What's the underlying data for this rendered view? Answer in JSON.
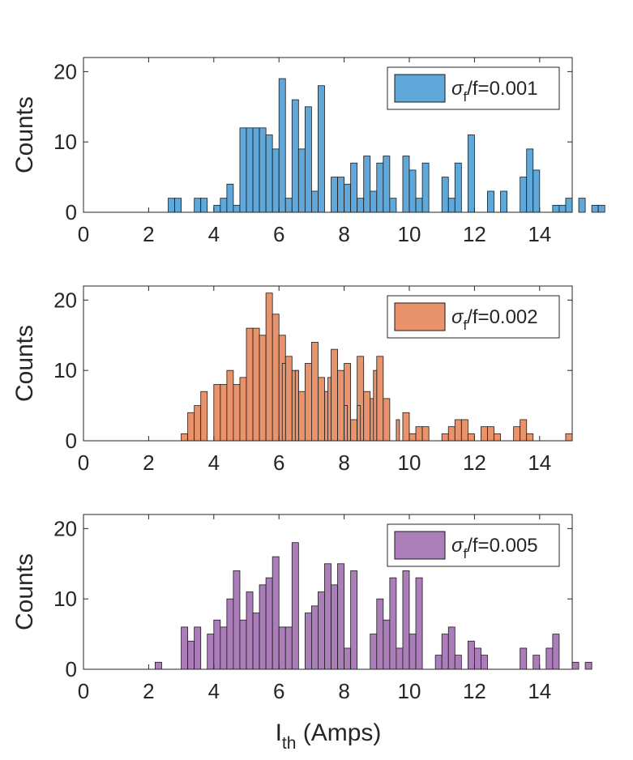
{
  "chart_data": [
    {
      "type": "bar",
      "panel": "top",
      "ylabel": "Counts",
      "xlabel": "",
      "xlim": [
        0,
        15
      ],
      "ylim": [
        0,
        22
      ],
      "xticks": [
        "0",
        "2",
        "4",
        "6",
        "8",
        "10",
        "12",
        "14"
      ],
      "yticks": [
        "0",
        "10",
        "20"
      ],
      "legend_position": "top-right",
      "legend": {
        "symbol": "σ",
        "sub": "f",
        "rest": "/f=0.001"
      },
      "color": "#5fa8d9",
      "bin_start": 1.0,
      "bin_width": 0.2,
      "values": [
        0,
        0,
        0,
        0,
        0,
        0,
        0,
        0,
        2,
        2,
        0,
        0,
        2,
        2,
        0,
        1,
        2,
        4,
        1,
        12,
        12,
        12,
        12,
        11,
        9,
        19,
        2,
        16,
        9,
        15,
        3,
        18,
        0,
        5,
        5,
        4,
        7,
        2,
        8,
        3,
        7,
        8,
        2,
        0,
        8,
        6,
        2,
        7,
        0,
        0,
        5,
        2,
        7,
        0,
        11,
        0,
        0,
        3,
        0,
        3,
        0,
        0,
        5,
        9,
        6,
        0,
        0,
        1,
        1,
        2,
        0,
        2,
        0,
        1,
        1
      ],
      "extra_values": []
    },
    {
      "type": "bar",
      "panel": "middle",
      "ylabel": "Counts",
      "xlabel": "",
      "xlim": [
        0,
        15
      ],
      "ylim": [
        0,
        22
      ],
      "xticks": [
        "0",
        "2",
        "4",
        "6",
        "8",
        "10",
        "12",
        "14"
      ],
      "yticks": [
        "0",
        "10",
        "20"
      ],
      "legend_position": "top-right",
      "legend": {
        "symbol": "σ",
        "sub": "f",
        "rest": "/f=0.002"
      },
      "color": "#e9936c",
      "bin_start": 1.0,
      "bin_width": 0.2,
      "values": [
        0,
        0,
        0,
        0,
        0,
        0,
        0,
        0,
        0,
        0,
        1,
        4,
        5,
        7,
        0,
        8,
        8,
        10,
        8,
        9,
        16,
        16,
        15,
        21,
        18,
        15,
        12,
        10,
        7,
        11,
        14,
        9,
        7,
        13,
        10,
        11,
        3,
        12,
        7,
        6,
        12,
        6,
        0,
        0,
        4,
        1,
        2,
        2,
        0,
        0,
        1,
        2,
        3,
        3,
        1,
        0,
        2,
        2,
        1,
        0,
        0,
        2,
        3,
        1,
        0,
        0,
        0,
        0,
        0,
        1,
        0,
        0,
        0,
        0,
        0
      ],
      "extra_values": [
        {
          "x": 6.1,
          "v": 11
        },
        {
          "x": 6.5,
          "v": 10
        },
        {
          "x": 7.5,
          "v": 9
        },
        {
          "x": 8.0,
          "v": 5
        },
        {
          "x": 8.4,
          "v": 5
        },
        {
          "x": 8.9,
          "v": 10
        },
        {
          "x": 9.6,
          "v": 3
        }
      ]
    },
    {
      "type": "bar",
      "panel": "bottom",
      "ylabel": "Counts",
      "xlabel_main": "I",
      "xlabel_sub": "th",
      "xlabel_rest": " (Amps)",
      "xlim": [
        0,
        15
      ],
      "ylim": [
        0,
        22
      ],
      "xticks": [
        "0",
        "2",
        "4",
        "6",
        "8",
        "10",
        "12",
        "14"
      ],
      "yticks": [
        "0",
        "10",
        "20"
      ],
      "legend_position": "top-right",
      "legend": {
        "symbol": "σ",
        "sub": "f",
        "rest": "/f=0.005"
      },
      "color": "#ab7db9",
      "bin_start": 1.0,
      "bin_width": 0.2,
      "values": [
        0,
        0,
        0,
        0,
        0,
        0,
        1,
        0,
        0,
        0,
        6,
        4,
        6,
        0,
        5,
        7,
        6,
        10,
        14,
        7,
        11,
        8,
        12,
        13,
        16,
        6,
        6,
        18,
        0,
        8,
        9,
        11,
        15,
        12,
        15,
        3,
        14,
        0,
        0,
        5,
        10,
        7,
        13,
        3,
        14,
        5,
        13,
        0,
        0,
        2,
        5,
        6,
        2,
        0,
        4,
        3,
        2,
        0,
        0,
        0,
        0,
        0,
        3,
        0,
        2,
        0,
        3,
        5,
        0,
        0,
        1,
        0,
        1,
        0,
        0
      ],
      "extra_values": []
    }
  ]
}
